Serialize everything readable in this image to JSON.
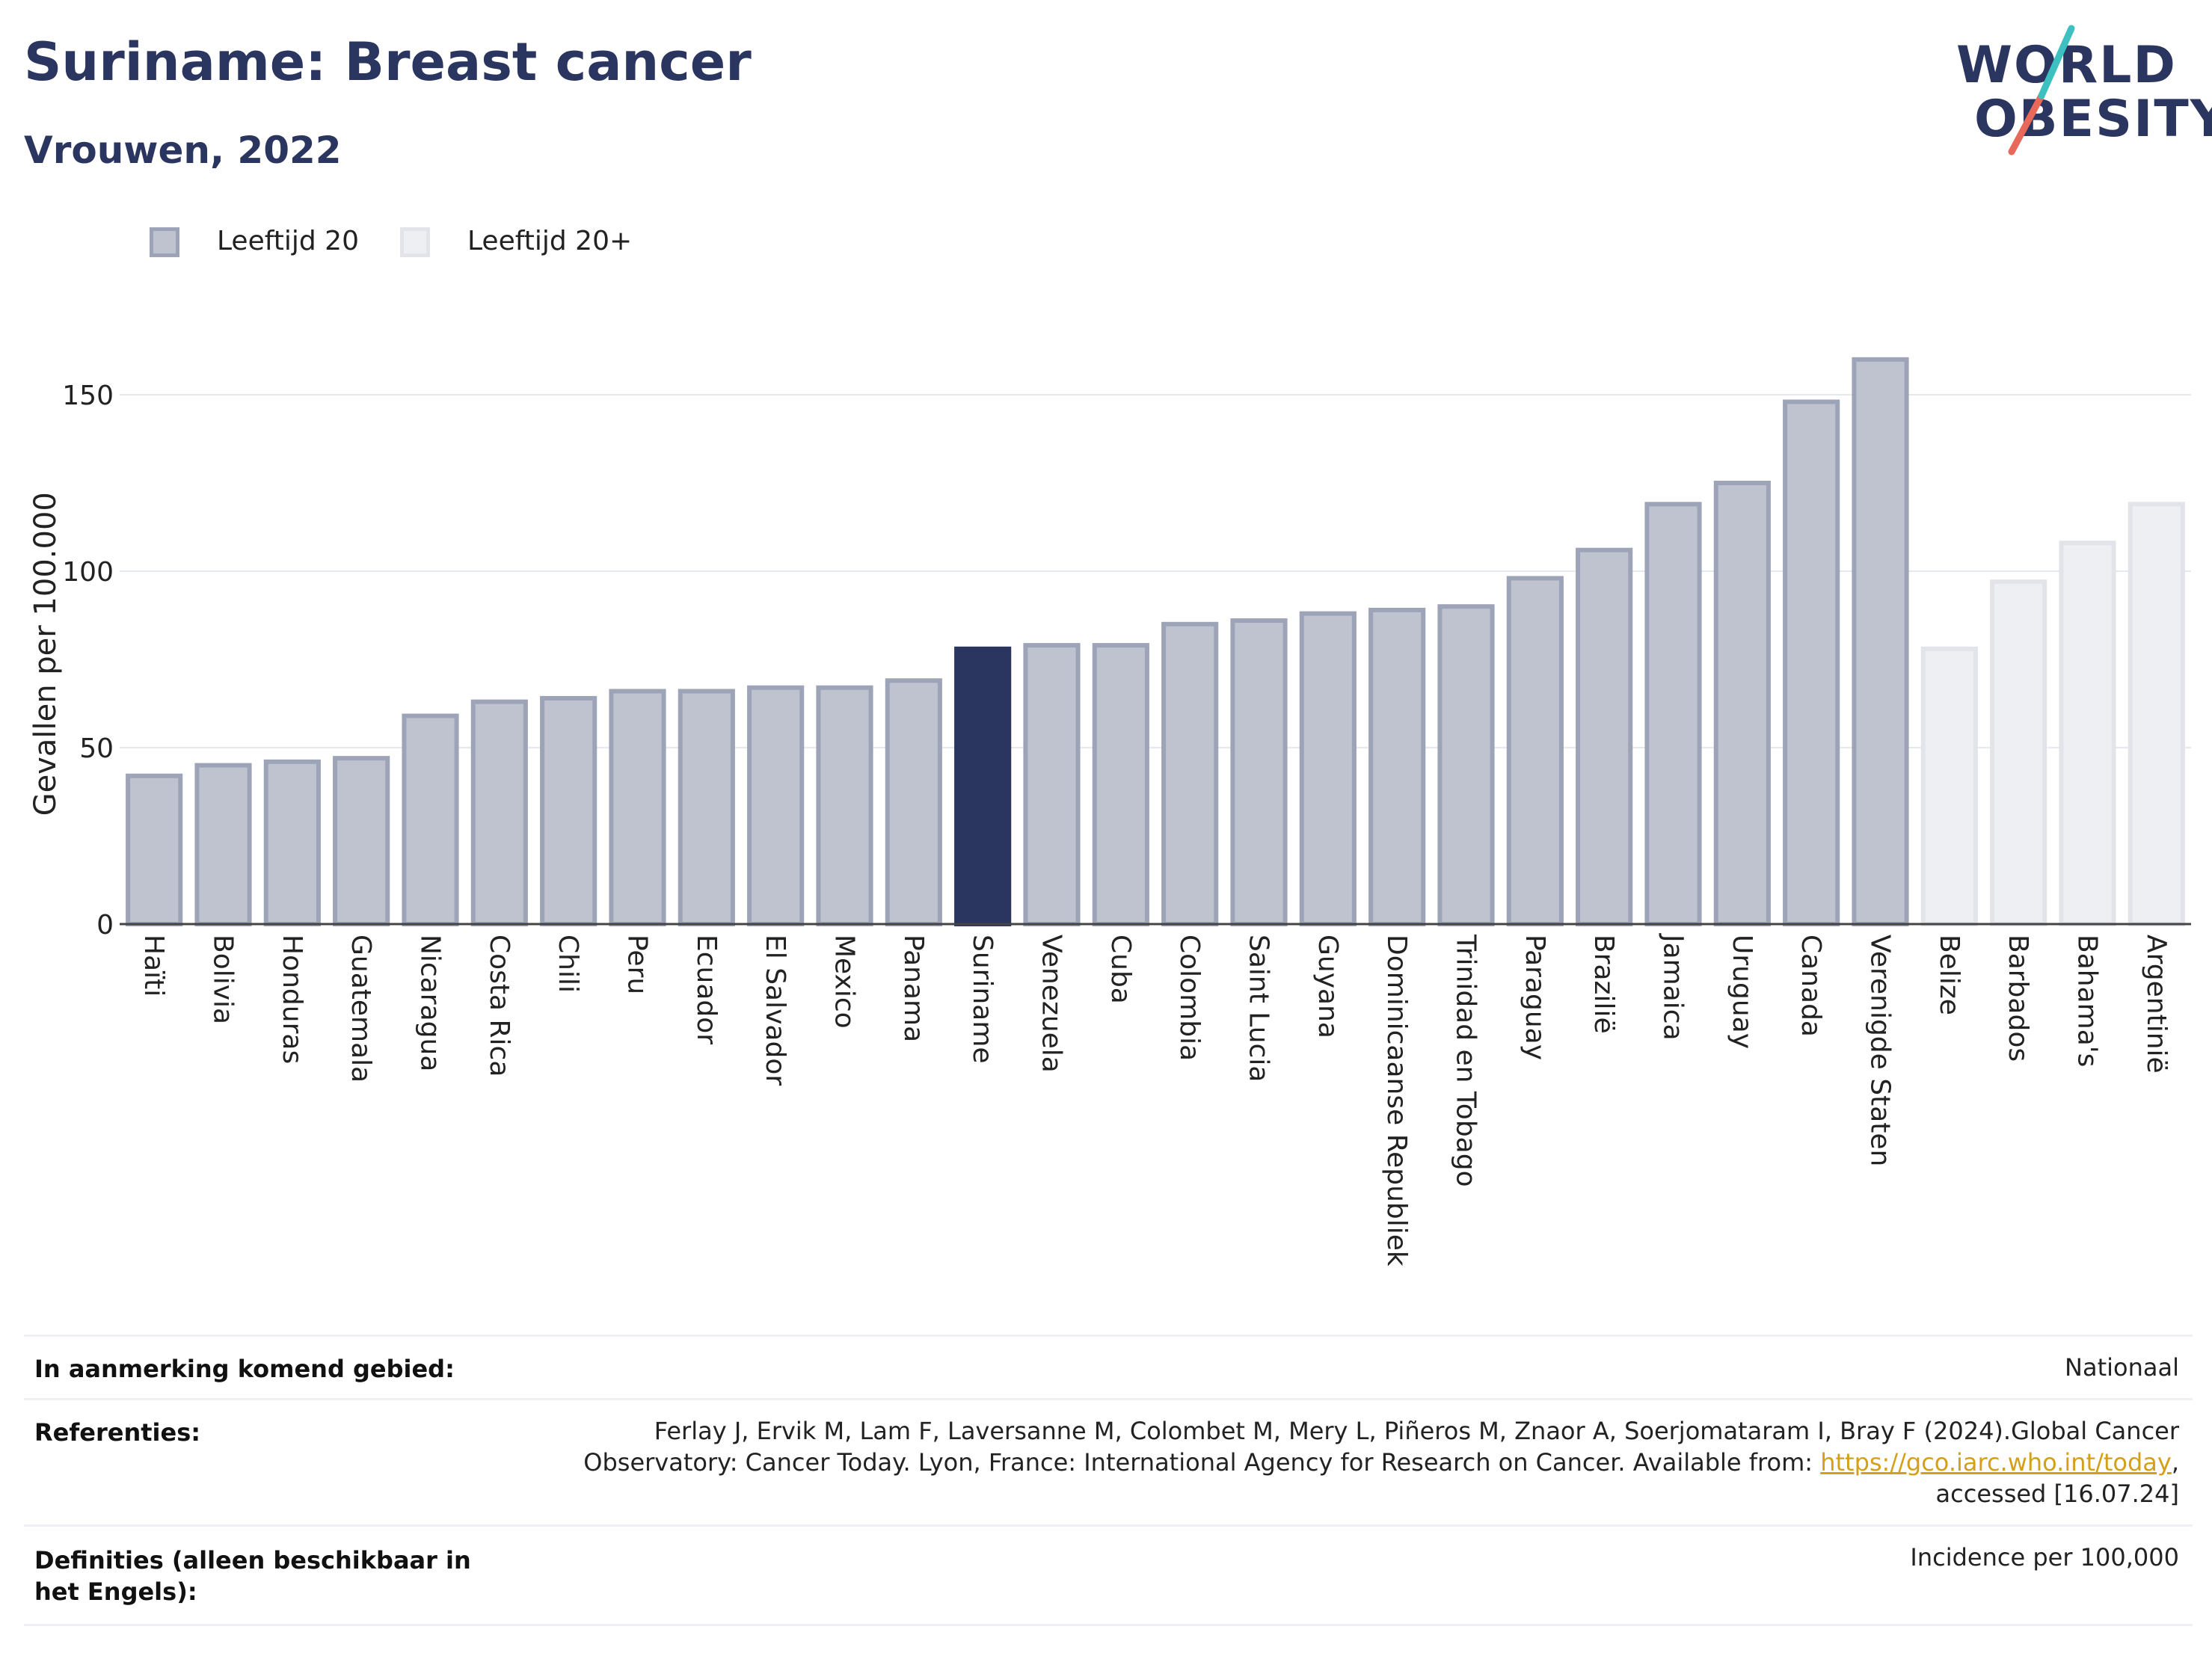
{
  "header": {
    "title": "Suriname: Breast cancer",
    "subtitle": "Vrouwen, 2022"
  },
  "logo": {
    "line1": "WORLD",
    "line2": "OBESITY"
  },
  "legend": [
    {
      "label": "Leeftijd 20",
      "fill": "#bfc3d0",
      "stroke": "#9ea4b8"
    },
    {
      "label": "Leeftijd 20+",
      "fill": "#eeeff3",
      "stroke": "#e2e4ea"
    }
  ],
  "chart_data": {
    "type": "bar",
    "ylabel": "Gevallen per 100.000",
    "ylim": [
      0,
      170
    ],
    "yticks": [
      0,
      50,
      100,
      150
    ],
    "grid": true,
    "categories": [
      "Haïti",
      "Bolivia",
      "Honduras",
      "Guatemala",
      "Nicaragua",
      "Costa Rica",
      "Chili",
      "Peru",
      "Ecuador",
      "El Salvador",
      "Mexico",
      "Panama",
      "Suriname",
      "Venezuela",
      "Cuba",
      "Colombia",
      "Saint Lucia",
      "Guyana",
      "Dominicaanse Republiek",
      "Trinidad en Tobago",
      "Paraguay",
      "Brazilië",
      "Jamaica",
      "Uruguay",
      "Canada",
      "Verenigde Staten",
      "Belize",
      "Barbados",
      "Bahama's",
      "Argentinië"
    ],
    "values": [
      42,
      45,
      46,
      47,
      59,
      63,
      64,
      66,
      66,
      67,
      67,
      69,
      78,
      79,
      79,
      85,
      86,
      88,
      89,
      90,
      98,
      106,
      119,
      125,
      148,
      160,
      78,
      97,
      108,
      119
    ],
    "groups": [
      "Leeftijd 20",
      "Leeftijd 20",
      "Leeftijd 20",
      "Leeftijd 20",
      "Leeftijd 20",
      "Leeftijd 20",
      "Leeftijd 20",
      "Leeftijd 20",
      "Leeftijd 20",
      "Leeftijd 20",
      "Leeftijd 20",
      "Leeftijd 20",
      "Leeftijd 20",
      "Leeftijd 20",
      "Leeftijd 20",
      "Leeftijd 20",
      "Leeftijd 20",
      "Leeftijd 20",
      "Leeftijd 20",
      "Leeftijd 20",
      "Leeftijd 20",
      "Leeftijd 20",
      "Leeftijd 20",
      "Leeftijd 20",
      "Leeftijd 20",
      "Leeftijd 20",
      "Leeftijd 20+",
      "Leeftijd 20+",
      "Leeftijd 20+",
      "Leeftijd 20+"
    ],
    "highlight": "Suriname",
    "highlight_color": "#2a3560"
  },
  "footer": {
    "rows": [
      {
        "key": "In aanmerking komend gebied:",
        "value": "Nationaal"
      },
      {
        "key": "Referenties:",
        "value_lines": [
          "Ferlay J, Ervik M, Lam F, Laversanne M, Colombet M, Mery L, Piñeros M, Znaor A, Soerjomataram I, Bray F (2024).Global Cancer",
          "Observatory: Cancer Today. Lyon, France: International Agency for Research on Cancer. Available from: ",
          "https://gco.iarc.who.int/today",
          ",",
          "accessed [16.07.24]"
        ]
      },
      {
        "key": "Definities (alleen beschikbaar in het Engels):",
        "value": "Incidence per 100,000"
      }
    ]
  }
}
